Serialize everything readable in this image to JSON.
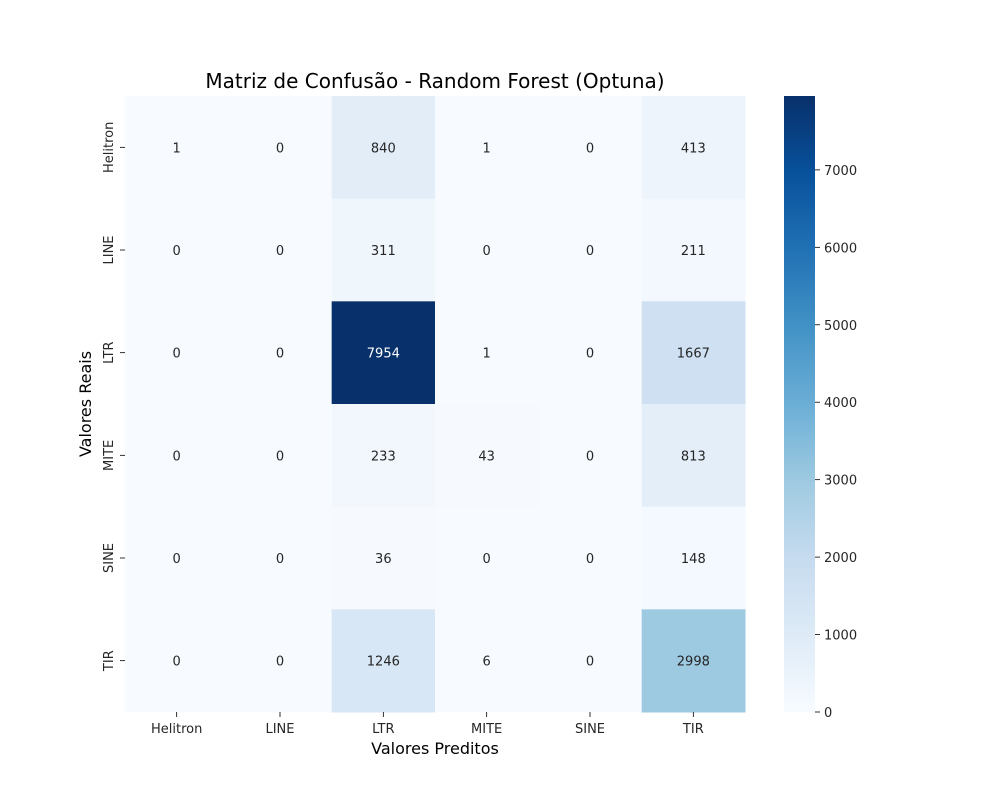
{
  "chart_data": {
    "type": "heatmap",
    "title": "Matriz de Confusão - Random Forest (Optuna)",
    "xlabel": "Valores Preditos",
    "ylabel": "Valores Reais",
    "x_categories": [
      "Helitron",
      "LINE",
      "LTR",
      "MITE",
      "SINE",
      "TIR"
    ],
    "y_categories": [
      "Helitron",
      "LINE",
      "LTR",
      "MITE",
      "SINE",
      "TIR"
    ],
    "values": [
      [
        1,
        0,
        840,
        1,
        0,
        413
      ],
      [
        0,
        0,
        311,
        0,
        0,
        211
      ],
      [
        0,
        0,
        7954,
        1,
        0,
        1667
      ],
      [
        0,
        0,
        233,
        43,
        0,
        813
      ],
      [
        0,
        0,
        36,
        0,
        0,
        148
      ],
      [
        0,
        0,
        1246,
        6,
        0,
        2998
      ]
    ],
    "colormap": "Blues",
    "colorbar": {
      "range": [
        0,
        7954
      ],
      "ticks": [
        0,
        1000,
        2000,
        3000,
        4000,
        5000,
        6000,
        7000
      ],
      "tick_labels": [
        "0",
        "1000",
        "2000",
        "3000",
        "4000",
        "5000",
        "6000",
        "7000"
      ]
    },
    "colors": {
      "low": "#f7fbff",
      "high": "#08306b"
    }
  }
}
